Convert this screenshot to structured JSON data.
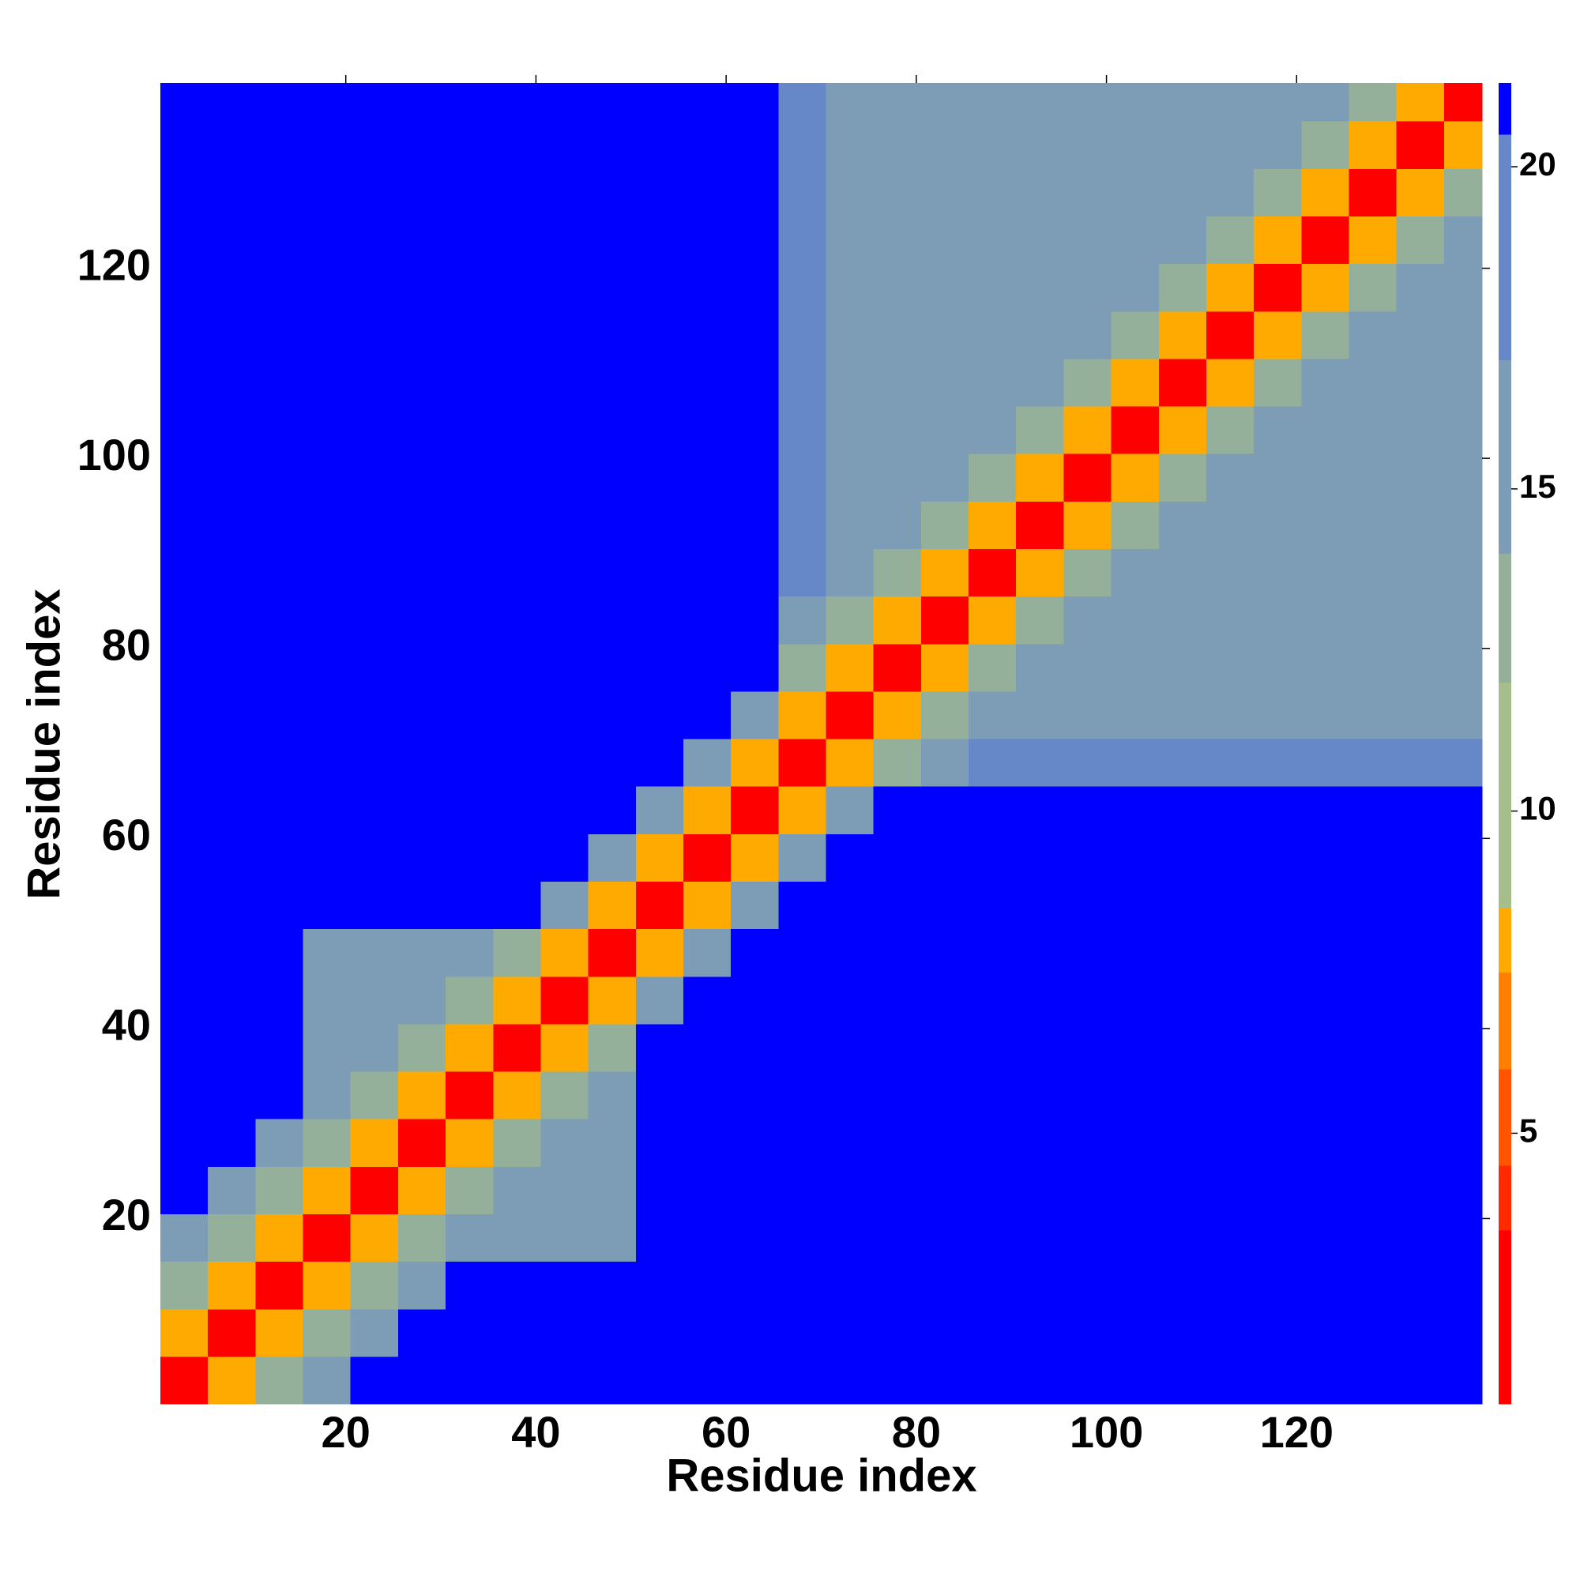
{
  "chart_data": {
    "type": "heatmap",
    "x_label": "Residue index",
    "y_label": "Residue index",
    "xbins": [
      0.5,
      5.5,
      10.5,
      15.5,
      20.5,
      25.5,
      30.5,
      35.5,
      40.5,
      45.5,
      50.5,
      55.5,
      60.5,
      65.5,
      70.5,
      75.5,
      80.5,
      85.5,
      90.5,
      95.5,
      100.5,
      105.5,
      110.5,
      115.5,
      120.5,
      125.5,
      130.5,
      135.5,
      139.5
    ],
    "ybins": [
      0.5,
      5.5,
      10.5,
      15.5,
      20.5,
      25.5,
      30.5,
      35.5,
      40.5,
      45.5,
      50.5,
      55.5,
      60.5,
      65.5,
      70.5,
      75.5,
      80.5,
      85.5,
      90.5,
      95.5,
      100.5,
      105.5,
      110.5,
      115.5,
      120.5,
      125.5,
      130.5,
      135.5,
      139.5
    ],
    "xlim": [
      0.5,
      139.5
    ],
    "ylim": [
      0.5,
      139.5
    ],
    "xticks": [
      20,
      40,
      60,
      80,
      100,
      120
    ],
    "yticks": [
      20,
      40,
      60,
      80,
      100,
      120
    ],
    "values": [
      [
        3,
        8,
        12,
        14,
        21,
        21,
        21,
        21,
        21,
        21,
        21,
        21,
        21,
        21,
        21,
        21,
        21,
        21,
        21,
        21,
        21,
        21,
        21,
        21,
        21,
        21,
        21,
        21
      ],
      [
        8,
        3,
        8,
        12,
        14,
        21,
        21,
        21,
        21,
        21,
        21,
        21,
        21,
        21,
        21,
        21,
        21,
        21,
        21,
        21,
        21,
        21,
        21,
        21,
        21,
        21,
        21,
        21
      ],
      [
        12,
        8,
        3,
        8,
        12,
        14,
        21,
        21,
        21,
        21,
        21,
        21,
        21,
        21,
        21,
        21,
        21,
        21,
        21,
        21,
        21,
        21,
        21,
        21,
        21,
        21,
        21,
        21
      ],
      [
        14,
        12,
        8,
        3,
        8,
        12,
        14,
        16,
        16,
        16,
        21,
        21,
        21,
        21,
        21,
        21,
        21,
        21,
        21,
        21,
        21,
        21,
        21,
        21,
        21,
        21,
        21,
        21
      ],
      [
        21,
        14,
        12,
        8,
        3,
        8,
        12,
        14,
        16,
        16,
        21,
        21,
        21,
        21,
        21,
        21,
        21,
        21,
        21,
        21,
        21,
        21,
        21,
        21,
        21,
        21,
        21,
        21
      ],
      [
        21,
        21,
        14,
        12,
        8,
        3,
        8,
        12,
        14,
        16,
        21,
        21,
        21,
        21,
        21,
        21,
        21,
        21,
        21,
        21,
        21,
        21,
        21,
        21,
        21,
        21,
        21,
        21
      ],
      [
        21,
        21,
        21,
        14,
        12,
        8,
        3,
        8,
        12,
        14,
        21,
        21,
        21,
        21,
        21,
        21,
        21,
        21,
        21,
        21,
        21,
        21,
        21,
        21,
        21,
        21,
        21,
        21
      ],
      [
        21,
        21,
        21,
        16,
        14,
        12,
        8,
        3,
        8,
        12,
        21,
        21,
        21,
        21,
        21,
        21,
        21,
        21,
        21,
        21,
        21,
        21,
        21,
        21,
        21,
        21,
        21,
        21
      ],
      [
        21,
        21,
        21,
        16,
        16,
        14,
        12,
        8,
        3,
        8,
        15,
        21,
        21,
        21,
        21,
        21,
        21,
        21,
        21,
        21,
        21,
        21,
        21,
        21,
        21,
        21,
        21,
        21
      ],
      [
        21,
        21,
        21,
        16,
        16,
        16,
        14,
        12,
        8,
        3,
        8,
        15,
        21,
        21,
        21,
        21,
        21,
        21,
        21,
        21,
        21,
        21,
        21,
        21,
        21,
        21,
        21,
        21
      ],
      [
        21,
        21,
        21,
        21,
        21,
        21,
        21,
        21,
        15,
        8,
        3,
        8,
        15,
        21,
        21,
        21,
        21,
        21,
        21,
        21,
        21,
        21,
        21,
        21,
        21,
        21,
        21,
        21
      ],
      [
        21,
        21,
        21,
        21,
        21,
        21,
        21,
        21,
        21,
        15,
        8,
        3,
        8,
        15,
        21,
        21,
        21,
        21,
        21,
        21,
        21,
        21,
        21,
        21,
        21,
        21,
        21,
        21
      ],
      [
        21,
        21,
        21,
        21,
        21,
        21,
        21,
        21,
        21,
        21,
        15,
        8,
        3,
        8,
        15,
        21,
        21,
        21,
        21,
        21,
        21,
        21,
        21,
        21,
        21,
        21,
        21,
        21
      ],
      [
        21,
        21,
        21,
        21,
        21,
        21,
        21,
        21,
        21,
        21,
        21,
        15,
        8,
        3,
        8,
        12,
        14,
        18,
        18,
        18,
        18,
        18,
        18,
        18,
        18,
        18,
        18,
        18
      ],
      [
        21,
        21,
        21,
        21,
        21,
        21,
        21,
        21,
        21,
        21,
        21,
        21,
        15,
        8,
        3,
        8,
        12,
        14,
        16,
        16,
        16,
        16,
        16,
        16,
        16,
        16,
        16,
        16
      ],
      [
        21,
        21,
        21,
        21,
        21,
        21,
        21,
        21,
        21,
        21,
        21,
        21,
        21,
        12,
        8,
        3,
        8,
        12,
        14,
        16,
        16,
        16,
        16,
        16,
        16,
        16,
        16,
        16
      ],
      [
        21,
        21,
        21,
        21,
        21,
        21,
        21,
        21,
        21,
        21,
        21,
        21,
        21,
        14,
        12,
        8,
        3,
        8,
        12,
        14,
        16,
        16,
        16,
        16,
        16,
        16,
        16,
        16
      ],
      [
        21,
        21,
        21,
        21,
        21,
        21,
        21,
        21,
        21,
        21,
        21,
        21,
        21,
        18,
        14,
        12,
        8,
        3,
        8,
        12,
        14,
        16,
        16,
        16,
        16,
        16,
        16,
        16
      ],
      [
        21,
        21,
        21,
        21,
        21,
        21,
        21,
        21,
        21,
        21,
        21,
        21,
        21,
        18,
        16,
        14,
        12,
        8,
        3,
        8,
        12,
        14,
        16,
        16,
        16,
        16,
        16,
        16
      ],
      [
        21,
        21,
        21,
        21,
        21,
        21,
        21,
        21,
        21,
        21,
        21,
        21,
        21,
        18,
        16,
        16,
        14,
        12,
        8,
        3,
        8,
        12,
        14,
        16,
        16,
        16,
        16,
        16
      ],
      [
        21,
        21,
        21,
        21,
        21,
        21,
        21,
        21,
        21,
        21,
        21,
        21,
        21,
        18,
        16,
        16,
        16,
        14,
        12,
        8,
        3,
        8,
        12,
        14,
        16,
        16,
        16,
        16
      ],
      [
        21,
        21,
        21,
        21,
        21,
        21,
        21,
        21,
        21,
        21,
        21,
        21,
        21,
        18,
        16,
        16,
        16,
        16,
        14,
        12,
        8,
        3,
        8,
        12,
        14,
        16,
        16,
        16
      ],
      [
        21,
        21,
        21,
        21,
        21,
        21,
        21,
        21,
        21,
        21,
        21,
        21,
        21,
        18,
        16,
        16,
        16,
        16,
        16,
        14,
        12,
        8,
        3,
        8,
        12,
        14,
        16,
        16
      ],
      [
        21,
        21,
        21,
        21,
        21,
        21,
        21,
        21,
        21,
        21,
        21,
        21,
        21,
        18,
        16,
        16,
        16,
        16,
        16,
        16,
        14,
        12,
        8,
        3,
        8,
        12,
        14,
        16
      ],
      [
        21,
        21,
        21,
        21,
        21,
        21,
        21,
        21,
        21,
        21,
        21,
        21,
        21,
        18,
        16,
        16,
        16,
        16,
        16,
        16,
        16,
        14,
        12,
        8,
        3,
        8,
        12,
        14
      ],
      [
        21,
        21,
        21,
        21,
        21,
        21,
        21,
        21,
        21,
        21,
        21,
        21,
        21,
        18,
        16,
        16,
        16,
        16,
        16,
        16,
        16,
        16,
        14,
        12,
        8,
        3,
        8,
        12
      ],
      [
        21,
        21,
        21,
        21,
        21,
        21,
        21,
        21,
        21,
        21,
        21,
        21,
        21,
        18,
        16,
        16,
        16,
        16,
        16,
        16,
        16,
        16,
        16,
        14,
        12,
        8,
        3,
        8
      ],
      [
        21,
        21,
        21,
        21,
        21,
        21,
        21,
        21,
        21,
        21,
        21,
        21,
        21,
        18,
        16,
        16,
        16,
        16,
        16,
        16,
        16,
        16,
        16,
        16,
        14,
        12,
        8,
        3
      ]
    ],
    "colorbar": {
      "lim": [
        0.8,
        21.3
      ],
      "ticks": [
        5,
        10,
        15,
        20
      ],
      "levels": [
        0.8,
        3.5,
        4.5,
        6,
        7.5,
        8.5,
        12,
        14,
        17,
        20.5,
        21.3
      ],
      "colors": [
        "#ff0000",
        "#ff2a00",
        "#ff5500",
        "#ff7f00",
        "#ffaa00",
        "#a6bd8c",
        "#94b09a",
        "#7d9cb6",
        "#6688c8",
        "#0000ff"
      ]
    }
  }
}
